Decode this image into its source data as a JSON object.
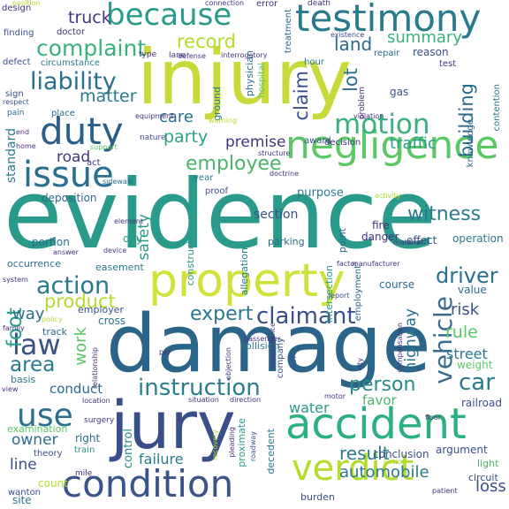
{
  "title": "",
  "words": [
    {
      "text": "evidence",
      "color": "#2a9a8a"
    },
    {
      "text": "injury",
      "color": "#c8d93a"
    },
    {
      "text": "damage",
      "color": "#2a6589"
    },
    {
      "text": "jury",
      "color": "#3a4f8a"
    },
    {
      "text": "property",
      "color": "#d0e23a"
    },
    {
      "text": "negligence",
      "color": "#5ac864"
    },
    {
      "text": "accident",
      "color": "#2bb07f"
    },
    {
      "text": "condition",
      "color": "#3a5389"
    },
    {
      "text": "verdict",
      "color": "#b3dc2b"
    },
    {
      "text": "testimony",
      "color": "#2a7a8e"
    },
    {
      "text": "because",
      "color": "#2a9a8a"
    },
    {
      "text": "duty",
      "color": "#2a5f8c"
    },
    {
      "text": "issue",
      "color": "#2a6f8e"
    },
    {
      "text": "complaint",
      "color": "#3ab07f"
    },
    {
      "text": "liability",
      "color": "#2a6f8e"
    },
    {
      "text": "motion",
      "color": "#3ab07f"
    },
    {
      "text": "instruction",
      "color": "#2a7e8e"
    },
    {
      "text": "claimant",
      "color": "#3a4f8a"
    },
    {
      "text": "use",
      "color": "#2a6f8e"
    },
    {
      "text": "vehicle",
      "color": "#3a6a8c"
    },
    {
      "text": "action",
      "color": "#2a788e"
    },
    {
      "text": "car",
      "color": "#2a7a8e"
    },
    {
      "text": "law",
      "color": "#3a5389"
    },
    {
      "text": "expert",
      "color": "#2a788e"
    },
    {
      "text": "employee",
      "color": "#4ab46a"
    },
    {
      "text": "witness",
      "color": "#2a7a8e"
    },
    {
      "text": "record",
      "color": "#b3dc2b"
    },
    {
      "text": "truck",
      "color": "#46337e"
    },
    {
      "text": "land",
      "color": "#2a6a8c"
    },
    {
      "text": "summary",
      "color": "#3ab07f"
    },
    {
      "text": "matter",
      "color": "#2a788e"
    },
    {
      "text": "care",
      "color": "#2a6f8e"
    },
    {
      "text": "party",
      "color": "#2aa08a"
    },
    {
      "text": "claim",
      "color": "#3a4f8a"
    },
    {
      "text": "lot",
      "color": "#2a6f8e"
    },
    {
      "text": "building",
      "color": "#2a6a8c"
    },
    {
      "text": "driver",
      "color": "#2a6f8e"
    },
    {
      "text": "foot",
      "color": "#2aa08a"
    },
    {
      "text": "product",
      "color": "#b3dc2b"
    },
    {
      "text": "area",
      "color": "#2a788e"
    },
    {
      "text": "rule",
      "color": "#5ac864"
    },
    {
      "text": "person",
      "color": "#2a8a8a"
    },
    {
      "text": "result",
      "color": "#2a7a8e"
    },
    {
      "text": "traffic",
      "color": "#2aa08a"
    },
    {
      "text": "safety",
      "color": "#2a9a8a"
    },
    {
      "text": "road",
      "color": "#46337e"
    },
    {
      "text": "premise",
      "color": "#46337e"
    },
    {
      "text": "way",
      "color": "#2a6f8e"
    },
    {
      "text": "work",
      "color": "#5ac864"
    },
    {
      "text": "street",
      "color": "#2a788e"
    },
    {
      "text": "risk",
      "color": "#3a4f8a"
    },
    {
      "text": "highway",
      "color": "#2a6f8e"
    },
    {
      "text": "water",
      "color": "#2a9a8a"
    },
    {
      "text": "owner",
      "color": "#2a6f8e"
    },
    {
      "text": "line",
      "color": "#3a4f8a"
    },
    {
      "text": "failure",
      "color": "#2a7a8e"
    },
    {
      "text": "automobile",
      "color": "#2a7a8e"
    },
    {
      "text": "loss",
      "color": "#3a4f8a"
    },
    {
      "text": "conduct",
      "color": "#2a6a8c"
    },
    {
      "text": "favor",
      "color": "#4ab46a"
    },
    {
      "text": "standard",
      "color": "#2a7a8e"
    },
    {
      "text": "section",
      "color": "#3a4f8a"
    },
    {
      "text": "purpose",
      "color": "#2a7a8e"
    },
    {
      "text": "deposition",
      "color": "#2a6a8c"
    },
    {
      "text": "portion",
      "color": "#2a6f8e"
    },
    {
      "text": "day",
      "color": "#2a9a8a"
    },
    {
      "text": "control",
      "color": "#2a8a8a"
    },
    {
      "text": "right",
      "color": "#2a6f8e"
    },
    {
      "text": "count",
      "color": "#b3dc2b"
    },
    {
      "text": "site",
      "color": "#2a7a8e"
    },
    {
      "text": "fire",
      "color": "#46337e"
    },
    {
      "text": "danger",
      "color": "#46337e"
    },
    {
      "text": "effect",
      "color": "#3a4f8a"
    },
    {
      "text": "operation",
      "color": "#2a7a8e"
    },
    {
      "text": "parking",
      "color": "#2a6a8c"
    },
    {
      "text": "point",
      "color": "#2a6a8c"
    },
    {
      "text": "employment",
      "color": "#2a6a8c"
    },
    {
      "text": "intersection",
      "color": "#2a9a8a"
    },
    {
      "text": "course",
      "color": "#2a6a8c"
    },
    {
      "text": "value",
      "color": "#2a6f8e"
    },
    {
      "text": "weight",
      "color": "#5ac864"
    },
    {
      "text": "railroad",
      "color": "#3a4f8a"
    },
    {
      "text": "argument",
      "color": "#3a4f8a"
    },
    {
      "text": "conclusion",
      "color": "#3a4f8a"
    },
    {
      "text": "basis",
      "color": "#2a788e"
    },
    {
      "text": "track",
      "color": "#2a6a8c"
    },
    {
      "text": "employer",
      "color": "#3a4f8a"
    },
    {
      "text": "cross",
      "color": "#2a6f8e"
    },
    {
      "text": "collision",
      "color": "#2a7a8e"
    },
    {
      "text": "circuit",
      "color": "#3a4f8a"
    },
    {
      "text": "light",
      "color": "#4ab46a"
    },
    {
      "text": "burden",
      "color": "#3a4f8a"
    },
    {
      "text": "occurrence",
      "color": "#2a6f8e"
    },
    {
      "text": "easement",
      "color": "#2a7a8e"
    },
    {
      "text": "examination",
      "color": "#5ac864"
    },
    {
      "text": "theory",
      "color": "#3a4f8a"
    },
    {
      "text": "train",
      "color": "#2a9a8a"
    },
    {
      "text": "mile",
      "color": "#46337e"
    },
    {
      "text": "wanton",
      "color": "#3a4f8a"
    },
    {
      "text": "decedent",
      "color": "#2a7a8e"
    },
    {
      "text": "proximate",
      "color": "#2a9a8a"
    },
    {
      "text": "surgery",
      "color": "#46337e"
    },
    {
      "text": "allegation",
      "color": "#2a7a8e"
    },
    {
      "text": "construction",
      "color": "#2a9a8a"
    },
    {
      "text": "decision",
      "color": "#46337e"
    },
    {
      "text": "award",
      "color": "#3a4f8a"
    },
    {
      "text": "hospital",
      "color": "#5ac864"
    },
    {
      "text": "physician",
      "color": "#2a6a8c"
    },
    {
      "text": "treatment",
      "color": "#2a6a8c"
    },
    {
      "text": "ground",
      "color": "#2a7a8e"
    },
    {
      "text": "hour",
      "color": "#2a7a8e"
    },
    {
      "text": "repair",
      "color": "#2a6a8c"
    },
    {
      "text": "reason",
      "color": "#3a4f8a"
    },
    {
      "text": "test",
      "color": "#46337e"
    },
    {
      "text": "gas",
      "color": "#3a4f8a"
    },
    {
      "text": "lane",
      "color": "#46337e"
    },
    {
      "text": "defect",
      "color": "#3a4f8a"
    },
    {
      "text": "circumstance",
      "color": "#2a7a8e"
    },
    {
      "text": "finding",
      "color": "#3a4f8a"
    },
    {
      "text": "doctor",
      "color": "#46337e"
    },
    {
      "text": "design",
      "color": "#46337e"
    },
    {
      "text": "sign",
      "color": "#3a4f8a"
    },
    {
      "text": "pain",
      "color": "#2a6a8c"
    },
    {
      "text": "place",
      "color": "#2a6a8c"
    },
    {
      "text": "nature",
      "color": "#3a4f8a"
    },
    {
      "text": "act",
      "color": "#46337e"
    },
    {
      "text": "proof",
      "color": "#3a4f8a"
    },
    {
      "text": "year",
      "color": "#2a7a8e"
    },
    {
      "text": "knowledge",
      "color": "#2a6a8c"
    },
    {
      "text": "contention",
      "color": "#2a7a8e"
    },
    {
      "text": "problem",
      "color": "#46337e"
    },
    {
      "text": "doctrine",
      "color": "#46337e"
    },
    {
      "text": "sidewalk",
      "color": "#2a6a8c"
    },
    {
      "text": "error",
      "color": "#46337e"
    },
    {
      "text": "death",
      "color": "#46337e"
    },
    {
      "text": "connection",
      "color": "#46337e"
    },
    {
      "text": "existence",
      "color": "#3a4f8a"
    },
    {
      "text": "defense",
      "color": "#46337e"
    },
    {
      "text": "interrogatory",
      "color": "#46337e"
    },
    {
      "text": "type",
      "color": "#46337e"
    },
    {
      "text": "respect",
      "color": "#3a4f8a"
    },
    {
      "text": "structure",
      "color": "#46337e"
    },
    {
      "text": "support",
      "color": "#5ac864"
    },
    {
      "text": "activity",
      "color": "#b3dc2b"
    },
    {
      "text": "violation",
      "color": "#46337e"
    },
    {
      "text": "answer",
      "color": "#46337e"
    },
    {
      "text": "device",
      "color": "#46337e"
    },
    {
      "text": "element",
      "color": "#46337e"
    },
    {
      "text": "manufacturer",
      "color": "#46337e"
    },
    {
      "text": "material",
      "color": "#46337e"
    },
    {
      "text": "factor",
      "color": "#46337e"
    },
    {
      "text": "report",
      "color": "#3a4f8a"
    },
    {
      "text": "system",
      "color": "#46337e"
    },
    {
      "text": "policy",
      "color": "#b3dc2b"
    },
    {
      "text": "family",
      "color": "#46337e"
    },
    {
      "text": "view",
      "color": "#46337e"
    },
    {
      "text": "location",
      "color": "#46337e"
    },
    {
      "text": "situation",
      "color": "#46337e"
    },
    {
      "text": "direction",
      "color": "#46337e"
    },
    {
      "text": "recovery",
      "color": "#b3dc2b"
    },
    {
      "text": "pleading",
      "color": "#46337e"
    },
    {
      "text": "roadway",
      "color": "#3a4f8a"
    },
    {
      "text": "tort",
      "color": "#3a4f8a"
    },
    {
      "text": "city",
      "color": "#46337e"
    },
    {
      "text": "motor",
      "color": "#46337e"
    },
    {
      "text": "floor",
      "color": "#46337e"
    },
    {
      "text": "patient",
      "color": "#46337e"
    },
    {
      "text": "notice",
      "color": "#b3dc2b"
    },
    {
      "text": "compensation",
      "color": "#46337e"
    },
    {
      "text": "passenger",
      "color": "#46337e"
    },
    {
      "text": "maintenance",
      "color": "#46337e"
    },
    {
      "text": "company",
      "color": "#3a4f8a"
    },
    {
      "text": "objection",
      "color": "#46337e"
    },
    {
      "text": "relationship",
      "color": "#46337e"
    },
    {
      "text": "par",
      "color": "#46337e"
    },
    {
      "text": "position",
      "color": "#b3dc2b"
    },
    {
      "text": "end",
      "color": "#46337e"
    },
    {
      "text": "home",
      "color": "#46337e"
    },
    {
      "text": "equipment",
      "color": "#46337e"
    },
    {
      "text": "warning",
      "color": "#b3dc2b"
    }
  ]
}
